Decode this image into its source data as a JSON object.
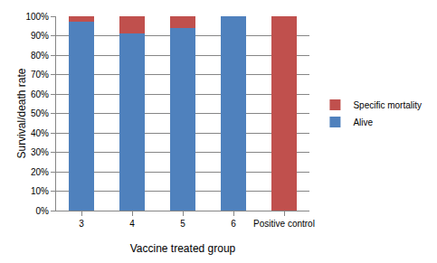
{
  "chart_data": {
    "type": "bar",
    "stacked": true,
    "x_label": "Vaccine treated group",
    "y_label": "Survival/death rate",
    "categories": [
      "3",
      "4",
      "5",
      "6",
      "Positive control"
    ],
    "series": [
      {
        "name": "Alive",
        "color": "#4f81bd",
        "values": [
          97,
          91,
          94,
          100,
          0
        ]
      },
      {
        "name": "Specific mortality",
        "color": "#c0504d",
        "values": [
          3,
          9,
          6,
          0,
          100
        ]
      }
    ],
    "ylim": [
      0,
      100
    ],
    "yticks": [
      {
        "value": 0,
        "label": "0%"
      },
      {
        "value": 10,
        "label": "10%"
      },
      {
        "value": 20,
        "label": "20%"
      },
      {
        "value": 30,
        "label": "30%"
      },
      {
        "value": 40,
        "label": "40%"
      },
      {
        "value": 50,
        "label": "50%"
      },
      {
        "value": 60,
        "label": "60%"
      },
      {
        "value": 70,
        "label": "70%"
      },
      {
        "value": 80,
        "label": "80%"
      },
      {
        "value": 90,
        "label": "90%"
      },
      {
        "value": 100,
        "label": "100%"
      }
    ],
    "grid": true,
    "legend": "right"
  }
}
